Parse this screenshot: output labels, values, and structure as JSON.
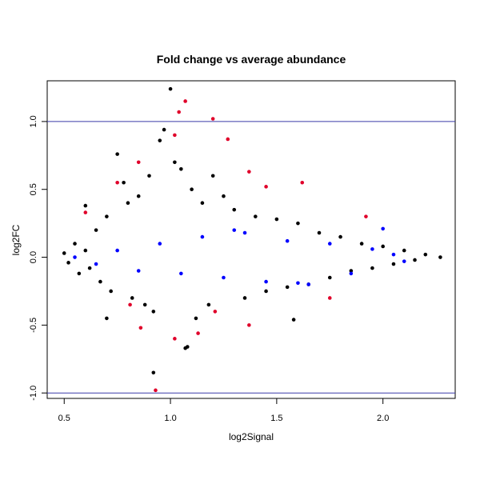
{
  "chart_data": {
    "type": "scatter",
    "title": "Fold change vs average abundance",
    "xlabel": "log2Signal",
    "ylabel": "log2FC",
    "xlim": [
      0.42,
      2.34
    ],
    "ylim": [
      -1.04,
      1.3
    ],
    "x_ticks": [
      0.5,
      1.0,
      1.5,
      2.0
    ],
    "x_tick_labels": [
      "0.5",
      "1.0",
      "1.5",
      "2.0"
    ],
    "y_ticks": [
      -1.0,
      -0.5,
      0.0,
      0.5,
      1.0
    ],
    "y_tick_labels": [
      "-1.0",
      "-0.5",
      "0.0",
      "0.5",
      "1.0"
    ],
    "reference_lines_y": [
      1.0,
      -1.0
    ],
    "reference_line_color": "#3a3aa8",
    "grid": false,
    "legend": "none",
    "series": [
      {
        "color": "#000000",
        "points": [
          [
            0.5,
            0.03
          ],
          [
            0.52,
            -0.04
          ],
          [
            0.55,
            0.1
          ],
          [
            0.57,
            -0.12
          ],
          [
            0.6,
            0.05
          ],
          [
            0.62,
            -0.08
          ],
          [
            0.65,
            0.2
          ],
          [
            0.67,
            -0.18
          ],
          [
            0.7,
            0.3
          ],
          [
            0.72,
            -0.25
          ],
          [
            0.75,
            0.76
          ],
          [
            0.78,
            0.55
          ],
          [
            0.8,
            0.4
          ],
          [
            0.82,
            -0.3
          ],
          [
            0.85,
            0.45
          ],
          [
            0.88,
            -0.35
          ],
          [
            0.9,
            0.6
          ],
          [
            0.92,
            -0.4
          ],
          [
            0.95,
            0.86
          ],
          [
            0.97,
            0.94
          ],
          [
            1.0,
            1.24
          ],
          [
            1.02,
            0.7
          ],
          [
            1.05,
            0.65
          ],
          [
            1.07,
            -0.67
          ],
          [
            1.1,
            0.5
          ],
          [
            1.12,
            -0.45
          ],
          [
            1.15,
            0.4
          ],
          [
            1.18,
            -0.35
          ],
          [
            1.2,
            0.6
          ],
          [
            1.25,
            0.45
          ],
          [
            1.3,
            0.35
          ],
          [
            1.35,
            -0.3
          ],
          [
            1.4,
            0.3
          ],
          [
            1.45,
            -0.25
          ],
          [
            1.5,
            0.28
          ],
          [
            1.55,
            -0.22
          ],
          [
            1.58,
            -0.46
          ],
          [
            1.6,
            0.25
          ],
          [
            1.65,
            -0.2
          ],
          [
            1.7,
            0.18
          ],
          [
            1.75,
            -0.15
          ],
          [
            1.8,
            0.15
          ],
          [
            1.85,
            -0.1
          ],
          [
            1.9,
            0.1
          ],
          [
            1.95,
            -0.08
          ],
          [
            2.0,
            0.08
          ],
          [
            2.05,
            -0.05
          ],
          [
            2.1,
            0.05
          ],
          [
            2.15,
            -0.02
          ],
          [
            2.2,
            0.02
          ],
          [
            2.27,
            0.0
          ],
          [
            0.92,
            -0.85
          ],
          [
            0.7,
            -0.45
          ],
          [
            1.08,
            -0.66
          ],
          [
            0.6,
            0.38
          ]
        ]
      },
      {
        "color": "#0000ff",
        "points": [
          [
            0.55,
            0.0
          ],
          [
            0.65,
            -0.05
          ],
          [
            0.75,
            0.05
          ],
          [
            0.85,
            -0.1
          ],
          [
            0.95,
            0.1
          ],
          [
            1.05,
            -0.12
          ],
          [
            1.15,
            0.15
          ],
          [
            1.25,
            -0.15
          ],
          [
            1.35,
            0.18
          ],
          [
            1.45,
            -0.18
          ],
          [
            1.55,
            0.12
          ],
          [
            1.65,
            -0.2
          ],
          [
            1.75,
            0.1
          ],
          [
            1.85,
            -0.12
          ],
          [
            1.95,
            0.06
          ],
          [
            2.0,
            0.21
          ],
          [
            2.05,
            0.02
          ],
          [
            2.1,
            -0.03
          ],
          [
            1.6,
            -0.19
          ],
          [
            1.3,
            0.2
          ]
        ]
      },
      {
        "color": "#e0002a",
        "points": [
          [
            0.93,
            -0.98
          ],
          [
            1.07,
            1.15
          ],
          [
            1.04,
            1.07
          ],
          [
            1.2,
            1.02
          ],
          [
            1.27,
            0.87
          ],
          [
            1.02,
            0.9
          ],
          [
            0.85,
            0.7
          ],
          [
            1.37,
            0.63
          ],
          [
            1.62,
            0.55
          ],
          [
            1.92,
            0.3
          ],
          [
            0.75,
            0.55
          ],
          [
            1.02,
            -0.6
          ],
          [
            1.13,
            -0.56
          ],
          [
            1.37,
            -0.5
          ],
          [
            0.86,
            -0.52
          ],
          [
            0.81,
            -0.35
          ],
          [
            1.75,
            -0.3
          ],
          [
            0.6,
            0.33
          ],
          [
            1.45,
            0.52
          ],
          [
            1.21,
            -0.4
          ]
        ]
      }
    ]
  }
}
